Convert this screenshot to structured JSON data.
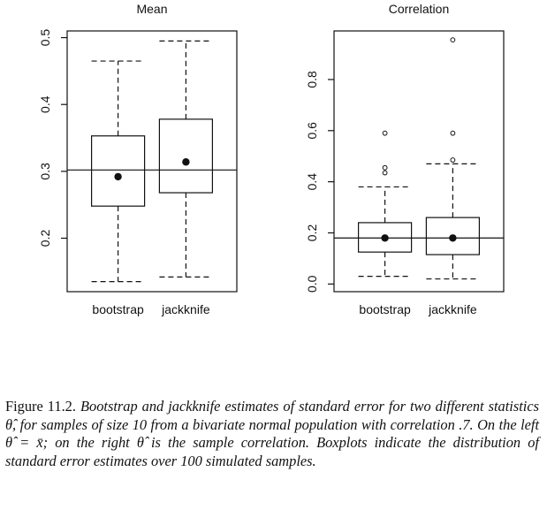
{
  "chart_data": [
    {
      "type": "box",
      "title": "Mean",
      "categories": [
        "bootstrap",
        "jackknife"
      ],
      "ylim": [
        0.12,
        0.51
      ],
      "yticks": [
        0.2,
        0.3,
        0.4,
        0.5
      ],
      "ytick_labels": [
        "0.2",
        "0.3",
        "0.4",
        "0.5"
      ],
      "reference_line": 0.302,
      "boxes": [
        {
          "whisker_low": 0.135,
          "q1": 0.248,
          "q3": 0.353,
          "whisker_high": 0.465,
          "mean": 0.292,
          "outliers": []
        },
        {
          "whisker_low": 0.142,
          "q1": 0.268,
          "q3": 0.378,
          "whisker_high": 0.495,
          "mean": 0.314,
          "outliers": []
        }
      ]
    },
    {
      "type": "box",
      "title": "Correlation",
      "categories": [
        "bootstrap",
        "jackknife"
      ],
      "ylim": [
        -0.03,
        0.99
      ],
      "yticks": [
        0.0,
        0.2,
        0.4,
        0.6,
        0.8
      ],
      "ytick_labels": [
        "0.0",
        "0.2",
        "0.4",
        "0.6",
        "0.8"
      ],
      "reference_line": 0.18,
      "boxes": [
        {
          "whisker_low": 0.03,
          "q1": 0.125,
          "q3": 0.24,
          "whisker_high": 0.38,
          "mean": 0.18,
          "outliers": [
            0.435,
            0.455,
            0.59
          ]
        },
        {
          "whisker_low": 0.02,
          "q1": 0.115,
          "q3": 0.26,
          "whisker_high": 0.47,
          "mean": 0.18,
          "outliers": [
            0.485,
            0.59,
            0.955
          ]
        }
      ]
    }
  ],
  "caption": {
    "lead": "Figure 11.2.",
    "body": "Bootstrap and jackknife estimates of standard error for two different statistics θ̂, for samples of size 10 from a bivariate normal population with correlation .7. On the left θ̂ = x̄; on the right θ̂ is the sample correlation. Boxplots indicate the distribution of standard error estimates over 100 simulated samples."
  }
}
